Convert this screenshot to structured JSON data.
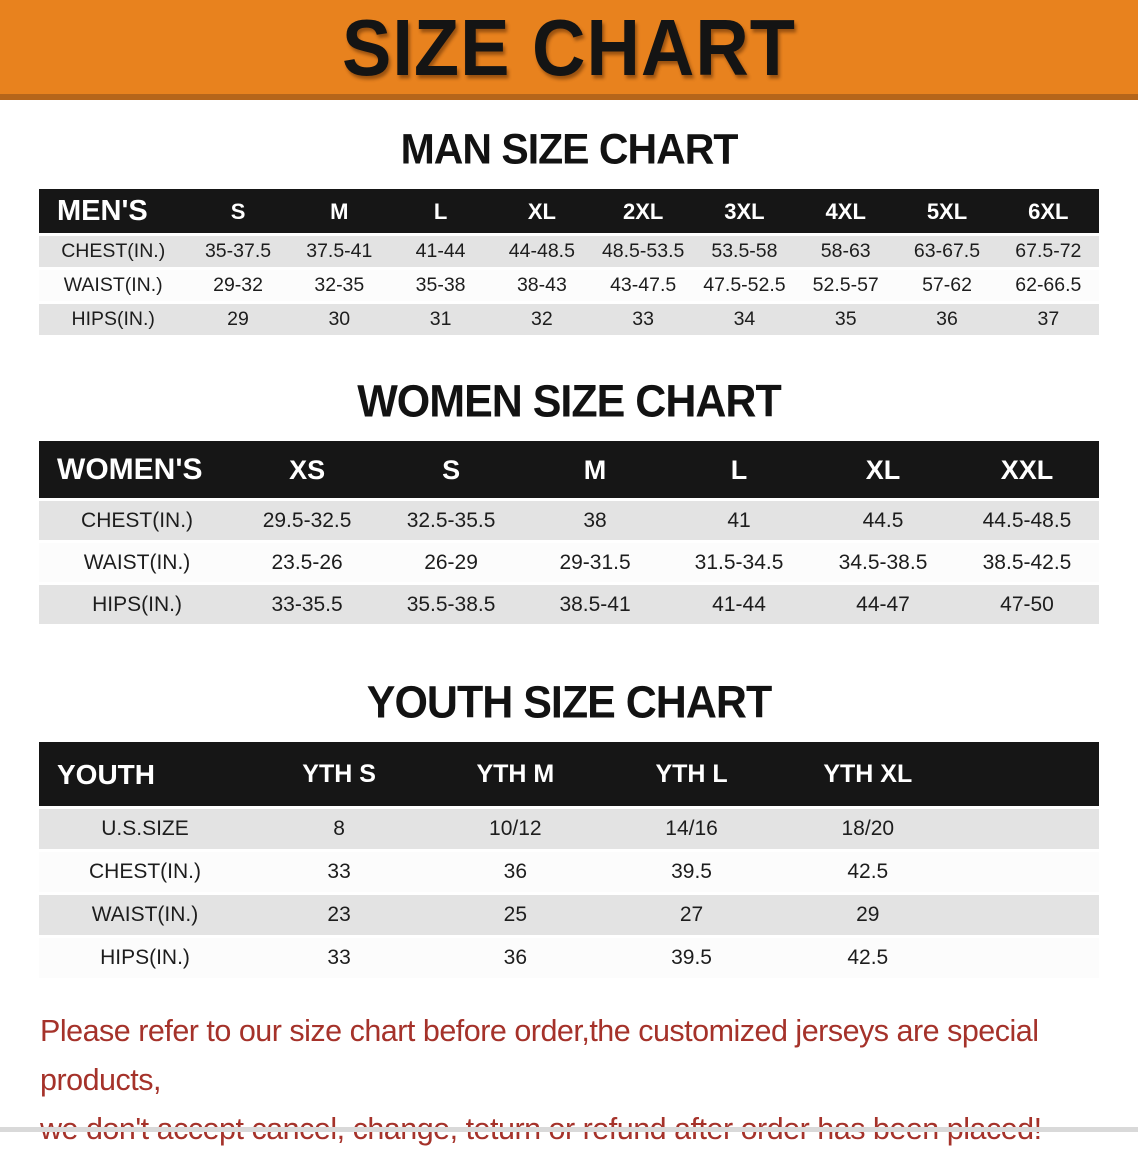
{
  "banner": {
    "title": "SIZE CHART",
    "bg_color": "#e8821e",
    "border_color": "#b5651a",
    "text_color": "#141414"
  },
  "sections": [
    {
      "title": "MAN SIZE CHART",
      "header_label": "MEN'S",
      "columns": [
        "S",
        "M",
        "L",
        "XL",
        "2XL",
        "3XL",
        "4XL",
        "5XL",
        "6XL"
      ],
      "rows": [
        {
          "label": "CHEST(IN.)",
          "values": [
            "35-37.5",
            "37.5-41",
            "41-44",
            "44-48.5",
            "48.5-53.5",
            "53.5-58",
            "58-63",
            "63-67.5",
            "67.5-72"
          ]
        },
        {
          "label": "WAIST(IN.)",
          "values": [
            "29-32",
            "32-35",
            "35-38",
            "38-43",
            "43-47.5",
            "47.5-52.5",
            "52.5-57",
            "57-62",
            "62-66.5"
          ]
        },
        {
          "label": "HIPS(IN.)",
          "values": [
            "29",
            "30",
            "31",
            "32",
            "33",
            "34",
            "35",
            "36",
            "37"
          ]
        }
      ]
    },
    {
      "title": "WOMEN SIZE CHART",
      "header_label": "WOMEN'S",
      "columns": [
        "XS",
        "S",
        "M",
        "L",
        "XL",
        "XXL"
      ],
      "rows": [
        {
          "label": "CHEST(IN.)",
          "values": [
            "29.5-32.5",
            "32.5-35.5",
            "38",
            "41",
            "44.5",
            "44.5-48.5"
          ]
        },
        {
          "label": "WAIST(IN.)",
          "values": [
            "23.5-26",
            "26-29",
            "29-31.5",
            "31.5-34.5",
            "34.5-38.5",
            "38.5-42.5"
          ]
        },
        {
          "label": "HIPS(IN.)",
          "values": [
            "33-35.5",
            "35.5-38.5",
            "38.5-41",
            "41-44",
            "44-47",
            "47-50"
          ]
        }
      ]
    },
    {
      "title": "YOUTH SIZE CHART",
      "header_label": "YOUTH",
      "columns": [
        "YTH S",
        "YTH M",
        "YTH L",
        "YTH XL"
      ],
      "rows": [
        {
          "label": "U.S.SIZE",
          "values": [
            "8",
            "10/12",
            "14/16",
            "18/20"
          ]
        },
        {
          "label": "CHEST(IN.)",
          "values": [
            "33",
            "36",
            "39.5",
            "42.5"
          ]
        },
        {
          "label": "WAIST(IN.)",
          "values": [
            "23",
            "25",
            "27",
            "29"
          ]
        },
        {
          "label": "HIPS(IN.)",
          "values": [
            "33",
            "36",
            "39.5",
            "42.5"
          ]
        }
      ]
    }
  ],
  "disclaimer": {
    "line1": "Please refer to our size chart before order,the customized jerseys are special products,",
    "line2": "we don't accept cancel, change, teturn or refund after order has been placed!",
    "color": "#a5322a"
  }
}
